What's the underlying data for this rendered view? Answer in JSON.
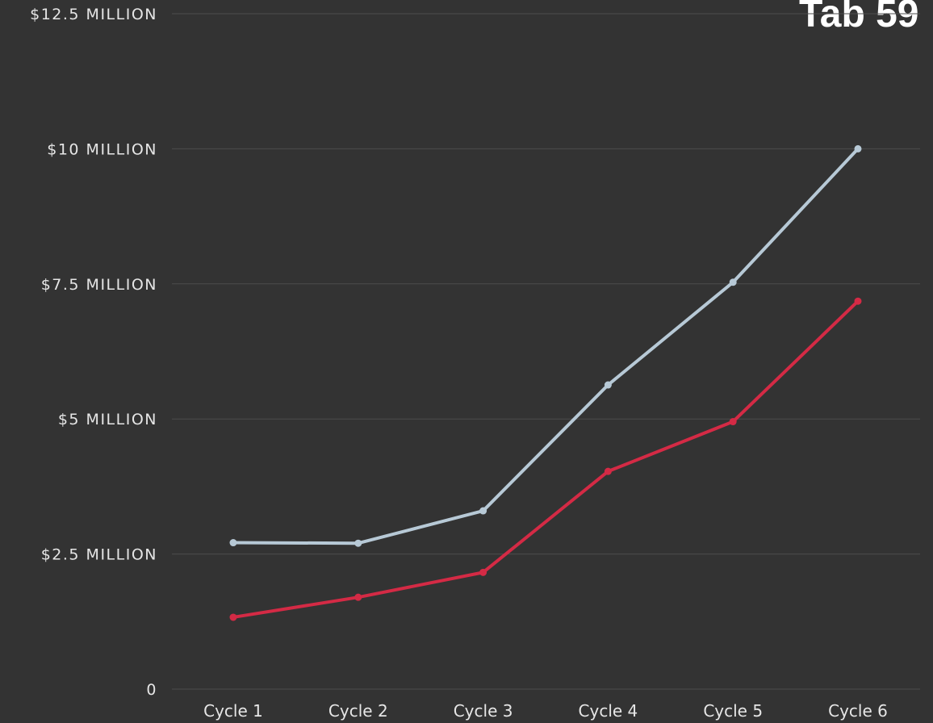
{
  "title": "Tab 59",
  "colors": {
    "background": "#333333",
    "gridline": "#4d4d4d",
    "tick_text": "#e6e6e6",
    "series_a": "#b7c9d6",
    "series_b": "#d42a45"
  },
  "chart_data": {
    "type": "line",
    "title": "Tab 59",
    "xlabel": "",
    "ylabel": "",
    "categories": [
      "Cycle 1",
      "Cycle 2",
      "Cycle 3",
      "Cycle 4",
      "Cycle 5",
      "Cycle 6"
    ],
    "ylim": [
      0,
      12.5
    ],
    "yticks": [
      0,
      2.5,
      5,
      7.5,
      10,
      12.5
    ],
    "ytick_labels": [
      "0",
      "$2.5 MILLION",
      "$5 MILLION",
      "$7.5 MILLION",
      "$10 MILLION",
      "$12.5 MILLION"
    ],
    "grid": true,
    "legend": "none",
    "series": [
      {
        "color": "#b7c9d6",
        "values": [
          2.71,
          2.7,
          3.3,
          5.63,
          7.53,
          10.0
        ]
      },
      {
        "color": "#d42a45",
        "values": [
          1.33,
          1.7,
          2.16,
          4.03,
          4.95,
          7.18
        ]
      }
    ]
  }
}
